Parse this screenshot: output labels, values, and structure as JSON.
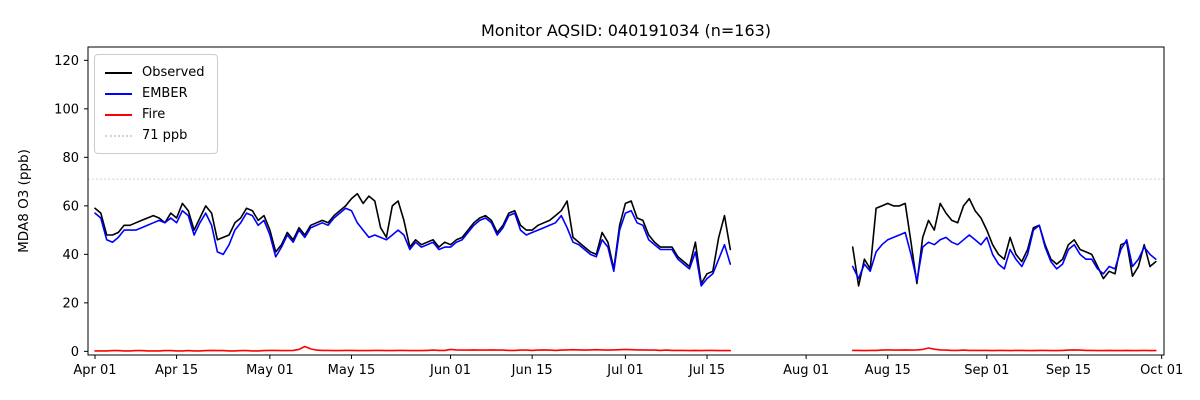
{
  "chart_data": {
    "type": "line",
    "title": "Monitor AQSID: 040191034 (n=163)",
    "xlabel": "",
    "ylabel": "MDA8 O3 (ppb)",
    "n_points": 163,
    "ylim": [
      -1.5,
      125.5
    ],
    "yticks": [
      0,
      20,
      40,
      60,
      80,
      100,
      120
    ],
    "xtick_labels": [
      "Apr 01",
      "Apr 15",
      "May 01",
      "May 15",
      "Jun 01",
      "Jun 15",
      "Jul 01",
      "Jul 15",
      "Aug 01",
      "Aug 15",
      "Sep 01",
      "Sep 15",
      "Oct 01"
    ],
    "xtick_days": [
      0,
      14,
      30,
      44,
      61,
      75,
      91,
      105,
      122,
      136,
      153,
      167,
      183
    ],
    "x_start": "Apr 01",
    "x_end": "Oct 01",
    "data_gap": "no data Jul 20 through Aug 08",
    "grid": false,
    "legend_position": "upper left",
    "threshold": {
      "label": "71 ppb",
      "value": 71,
      "color": "#d3d3d3",
      "style": "dotted"
    },
    "series": [
      {
        "name": "Observed",
        "color": "#000000",
        "values": [
          59,
          57,
          48,
          48,
          49,
          52,
          52,
          53,
          54,
          55,
          56,
          55,
          53,
          57,
          55,
          61,
          58,
          50,
          55,
          60,
          57,
          46,
          47,
          48,
          53,
          55,
          59,
          58,
          54,
          56,
          50,
          41,
          44,
          49,
          46,
          51,
          48,
          52,
          53,
          54,
          53,
          56,
          58,
          60,
          63,
          65,
          61,
          64,
          62,
          51,
          47,
          60,
          62,
          54,
          43,
          46,
          44,
          45,
          46,
          43,
          45,
          44,
          46,
          47,
          50,
          53,
          55,
          56,
          54,
          49,
          52,
          57,
          58,
          52,
          50,
          50,
          52,
          53,
          54,
          56,
          58,
          62,
          47,
          45,
          43,
          41,
          40,
          49,
          45,
          34,
          52,
          61,
          62,
          55,
          54,
          48,
          45,
          43,
          43,
          43,
          39,
          37,
          35,
          45,
          28,
          32,
          33,
          47,
          56,
          42,
          null,
          null,
          null,
          null,
          null,
          null,
          null,
          null,
          null,
          null,
          null,
          null,
          null,
          null,
          null,
          null,
          null,
          null,
          null,
          null,
          43,
          27,
          38,
          34,
          59,
          60,
          61,
          60,
          60,
          61,
          45,
          28,
          47,
          54,
          50,
          61,
          57,
          54,
          53,
          60,
          63,
          58,
          55,
          50,
          44,
          40,
          38,
          47,
          40,
          37,
          42,
          51,
          52,
          44,
          38,
          36,
          38,
          44,
          46,
          42,
          41,
          40,
          35,
          30,
          33,
          32,
          44,
          45,
          31,
          35,
          44,
          35,
          37
        ]
      },
      {
        "name": "EMBER",
        "color": "#0000ff",
        "values": [
          57,
          55,
          46,
          45,
          47,
          50,
          50,
          50,
          51,
          52,
          53,
          54,
          53,
          55,
          53,
          58,
          56,
          48,
          53,
          57,
          52,
          41,
          40,
          44,
          50,
          53,
          57,
          56,
          52,
          54,
          48,
          39,
          43,
          48,
          45,
          50,
          47,
          51,
          52,
          53,
          52,
          55,
          57,
          59,
          58,
          53,
          50,
          47,
          48,
          47,
          46,
          48,
          50,
          48,
          42,
          45,
          43,
          44,
          45,
          42,
          43,
          43,
          45,
          46,
          49,
          52,
          54,
          55,
          53,
          48,
          51,
          56,
          57,
          50,
          48,
          49,
          50,
          51,
          52,
          53,
          56,
          51,
          45,
          44,
          42,
          40,
          39,
          46,
          43,
          33,
          50,
          57,
          58,
          53,
          52,
          46,
          44,
          42,
          42,
          42,
          38,
          36,
          34,
          41,
          27,
          30,
          32,
          38,
          44,
          36,
          null,
          null,
          null,
          null,
          null,
          null,
          null,
          null,
          null,
          null,
          null,
          null,
          null,
          null,
          null,
          null,
          null,
          null,
          null,
          null,
          35,
          30,
          36,
          33,
          41,
          44,
          46,
          47,
          48,
          49,
          40,
          29,
          43,
          45,
          44,
          46,
          47,
          45,
          44,
          46,
          48,
          46,
          44,
          47,
          40,
          36,
          34,
          42,
          38,
          35,
          40,
          50,
          52,
          43,
          37,
          34,
          36,
          42,
          44,
          40,
          38,
          38,
          34,
          32,
          35,
          34,
          42,
          46,
          35,
          38,
          43,
          40,
          38
        ]
      },
      {
        "name": "Fire",
        "color": "#ff0000",
        "values": [
          0.2,
          0.2,
          0.2,
          0.3,
          0.3,
          0.2,
          0.2,
          0.3,
          0.3,
          0.2,
          0.2,
          0.2,
          0.3,
          0.3,
          0.2,
          0.2,
          0.3,
          0.2,
          0.2,
          0.3,
          0.4,
          0.3,
          0.3,
          0.2,
          0.2,
          0.3,
          0.3,
          0.2,
          0.2,
          0.3,
          0.4,
          0.4,
          0.3,
          0.3,
          0.4,
          0.8,
          2.0,
          1.0,
          0.5,
          0.4,
          0.4,
          0.3,
          0.3,
          0.4,
          0.4,
          0.3,
          0.3,
          0.3,
          0.4,
          0.4,
          0.3,
          0.3,
          0.4,
          0.4,
          0.3,
          0.3,
          0.3,
          0.4,
          0.5,
          0.4,
          0.4,
          0.8,
          0.6,
          0.5,
          0.5,
          0.6,
          0.5,
          0.5,
          0.6,
          0.5,
          0.5,
          0.4,
          0.4,
          0.5,
          0.5,
          0.4,
          0.5,
          0.6,
          0.5,
          0.4,
          0.5,
          0.6,
          0.7,
          0.6,
          0.5,
          0.6,
          0.7,
          0.6,
          0.5,
          0.6,
          0.7,
          0.8,
          0.7,
          0.6,
          0.6,
          0.5,
          0.5,
          0.4,
          0.5,
          0.4,
          0.4,
          0.4,
          0.3,
          0.4,
          0.3,
          0.4,
          0.4,
          0.3,
          0.3,
          0.3,
          null,
          null,
          null,
          null,
          null,
          null,
          null,
          null,
          null,
          null,
          null,
          null,
          null,
          null,
          null,
          null,
          null,
          null,
          null,
          null,
          0.4,
          0.4,
          0.3,
          0.4,
          0.4,
          0.5,
          0.6,
          0.5,
          0.5,
          0.6,
          0.5,
          0.6,
          0.8,
          1.4,
          0.9,
          0.6,
          0.5,
          0.4,
          0.4,
          0.5,
          0.4,
          0.4,
          0.4,
          0.4,
          0.3,
          0.4,
          0.4,
          0.3,
          0.4,
          0.4,
          0.3,
          0.3,
          0.4,
          0.4,
          0.3,
          0.3,
          0.4,
          0.5,
          0.6,
          0.5,
          0.4,
          0.4,
          0.3,
          0.3,
          0.4,
          0.3,
          0.3,
          0.4,
          0.3,
          0.3,
          0.4,
          0.3,
          0.3
        ]
      }
    ]
  }
}
